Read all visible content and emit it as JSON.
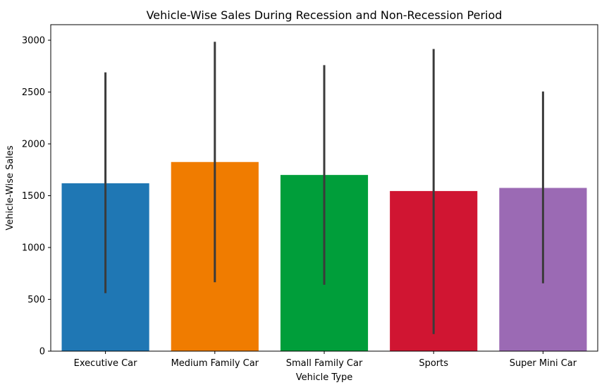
{
  "chart_data": {
    "type": "bar",
    "title": "Vehicle-Wise Sales During Recession and Non-Recession Period",
    "xlabel": "Vehicle Type",
    "ylabel": "Vehicle-Wise Sales",
    "ylim": [
      0,
      3150
    ],
    "yticks": [
      0,
      500,
      1000,
      1500,
      2000,
      2500,
      3000
    ],
    "categories": [
      "Executive Car",
      "Medium Family Car",
      "Small Family Car",
      "Sports",
      "Super Mini Car"
    ],
    "values": [
      1620,
      1825,
      1700,
      1545,
      1575
    ],
    "error_low": [
      560,
      665,
      640,
      165,
      655
    ],
    "error_high": [
      2690,
      2985,
      2760,
      2915,
      2505
    ],
    "colors": [
      "#1f77b4",
      "#f07c00",
      "#009e3a",
      "#d01532",
      "#9b6ab4"
    ],
    "error_color": "#3b3b3b",
    "grid": false,
    "legend": "none"
  }
}
